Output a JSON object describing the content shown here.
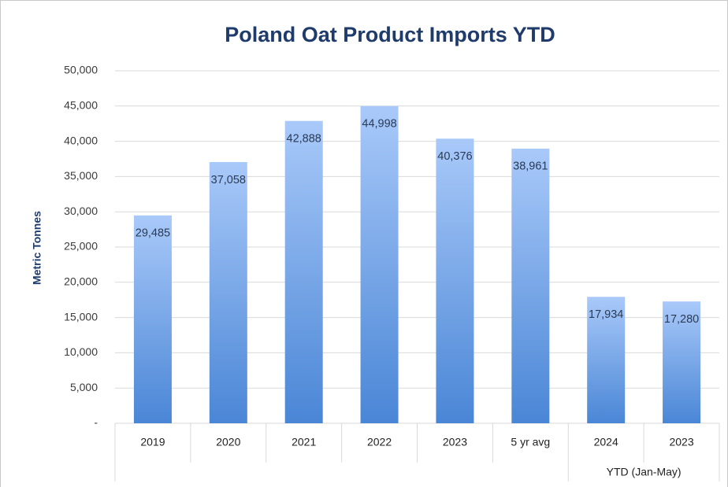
{
  "chart_data": {
    "type": "bar",
    "title": "Poland Oat Product Imports YTD",
    "y_label": "Metric Tonnes",
    "categories": [
      "2019",
      "2020",
      "2021",
      "2022",
      "2023",
      "5 yr avg",
      "2024",
      "2023"
    ],
    "category_group": "YTD (Jan-May)",
    "values": [
      29485,
      37058,
      42888,
      44998,
      40376,
      38961,
      17934,
      17280
    ],
    "value_labels": [
      "29,485",
      "37,058",
      "42,888",
      "44,998",
      "40,376",
      "38,961",
      "17,934",
      "17,280"
    ],
    "color": [
      "#a9c9f9",
      "#4a86d6"
    ],
    "ylim": [
      0,
      50000
    ],
    "yticks": [
      {
        "value": 0,
        "label": "-"
      },
      {
        "value": 5000,
        "label": "5,000"
      },
      {
        "value": 10000,
        "label": "10,000"
      },
      {
        "value": 15000,
        "label": "15,000"
      },
      {
        "value": 20000,
        "label": "20,000"
      },
      {
        "value": 25000,
        "label": "25,000"
      },
      {
        "value": 30000,
        "label": "30,000"
      },
      {
        "value": 35000,
        "label": "35,000"
      },
      {
        "value": 40000,
        "label": "40,000"
      },
      {
        "value": 45000,
        "label": "45,000"
      },
      {
        "value": 50000,
        "label": "50,000"
      }
    ],
    "grid": true
  }
}
